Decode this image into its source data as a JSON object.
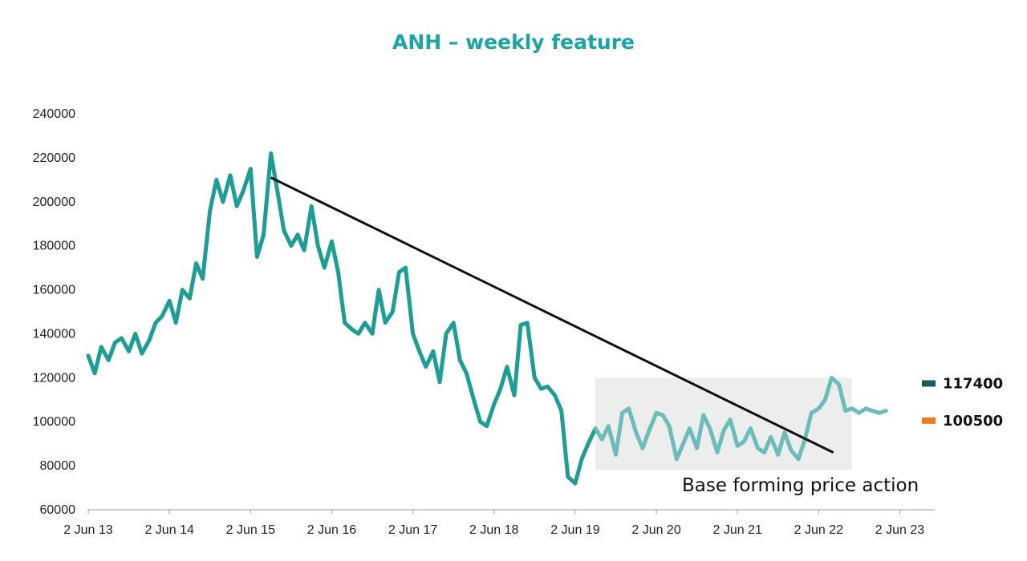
{
  "chart_data": {
    "type": "line",
    "title": "ANH – weekly feature",
    "xlabel": "",
    "ylabel": "",
    "ylim": [
      60000,
      240000
    ],
    "yticks": [
      60000,
      80000,
      100000,
      120000,
      140000,
      160000,
      180000,
      200000,
      220000,
      240000
    ],
    "xtick_labels": [
      "2 Jun 13",
      "2 Jun 14",
      "2 Jun 15",
      "2 Jun 16",
      "2 Jun 17",
      "2 Jun 18",
      "2 Jun 19",
      "2 Jun 20",
      "2 Jun 21",
      "2 Jun 22",
      "2 Jun 23"
    ],
    "grid": false,
    "legend": "none",
    "series": [
      {
        "color": "#1a9e96",
        "highlight_color": "#6cbcb9",
        "x": [
          2013.42,
          2013.5,
          2013.58,
          2013.67,
          2013.75,
          2013.83,
          2013.92,
          2014.0,
          2014.08,
          2014.17,
          2014.25,
          2014.33,
          2014.42,
          2014.5,
          2014.58,
          2014.67,
          2014.75,
          2014.83,
          2014.92,
          2015.0,
          2015.08,
          2015.17,
          2015.25,
          2015.33,
          2015.42,
          2015.5,
          2015.58,
          2015.67,
          2015.75,
          2015.83,
          2015.92,
          2016.0,
          2016.08,
          2016.17,
          2016.25,
          2016.33,
          2016.42,
          2016.5,
          2016.58,
          2016.67,
          2016.75,
          2016.83,
          2016.92,
          2017.0,
          2017.08,
          2017.17,
          2017.25,
          2017.33,
          2017.42,
          2017.5,
          2017.58,
          2017.67,
          2017.75,
          2017.83,
          2017.92,
          2018.0,
          2018.08,
          2018.17,
          2018.25,
          2018.33,
          2018.42,
          2018.5,
          2018.58,
          2018.67,
          2018.75,
          2018.83,
          2018.92,
          2019.0,
          2019.08,
          2019.17,
          2019.25,
          2019.33,
          2019.42,
          2019.5,
          2019.58,
          2019.67,
          2019.75,
          2019.83,
          2019.92,
          2020.0,
          2020.08,
          2020.17,
          2020.25,
          2020.33,
          2020.42,
          2020.5,
          2020.58,
          2020.67,
          2020.75,
          2020.83,
          2020.92,
          2021.0,
          2021.08,
          2021.17,
          2021.25,
          2021.33,
          2021.42,
          2021.5,
          2021.58,
          2021.67,
          2021.75,
          2021.83,
          2021.92,
          2022.0,
          2022.08,
          2022.17,
          2022.25,
          2022.33,
          2022.42,
          2022.5,
          2022.58,
          2022.67,
          2022.75,
          2022.83,
          2022.92,
          2023.0,
          2023.08,
          2023.17,
          2023.25
        ],
        "values": [
          130000,
          122000,
          134000,
          128000,
          136000,
          138000,
          132000,
          140000,
          131000,
          137000,
          145000,
          148000,
          155000,
          145000,
          160000,
          156000,
          172000,
          165000,
          196000,
          210000,
          200000,
          212000,
          198000,
          205000,
          215000,
          175000,
          185000,
          222000,
          205000,
          187000,
          180000,
          185000,
          178000,
          198000,
          180000,
          170000,
          182000,
          168000,
          145000,
          142000,
          140000,
          145000,
          140000,
          160000,
          145000,
          150000,
          168000,
          170000,
          140000,
          132000,
          125000,
          132000,
          118000,
          140000,
          145000,
          128000,
          122000,
          110000,
          100000,
          98000,
          108000,
          115000,
          125000,
          112000,
          144000,
          145000,
          120000,
          115000,
          116000,
          112000,
          105000,
          75000,
          72000,
          83000,
          90000,
          97000,
          92000,
          98000,
          85000,
          104000,
          106000,
          95000,
          88000,
          96000,
          104000,
          103000,
          98000,
          83000,
          90000,
          97000,
          88000,
          103000,
          97000,
          86000,
          96000,
          101000,
          89000,
          91000,
          97000,
          88000,
          86000,
          93000,
          85000,
          95000,
          87000,
          83000,
          92000,
          104000,
          106000,
          110000,
          120000,
          117000,
          105000,
          106000,
          104000,
          106000,
          105000,
          104000,
          105000
        ]
      }
    ],
    "trendline": {
      "x": [
        2015.67,
        2022.6
      ],
      "values": [
        211000,
        86000
      ]
    },
    "highlight_box": {
      "x": [
        2019.67,
        2022.83
      ],
      "y": [
        78000,
        120000
      ]
    },
    "annotations": [
      {
        "text": "Base forming price action"
      }
    ],
    "end_markers": [
      {
        "label": "117400",
        "value": 117400,
        "color": "#145e5e"
      },
      {
        "label": "100500",
        "value": 100500,
        "color": "#f07a24"
      }
    ]
  }
}
